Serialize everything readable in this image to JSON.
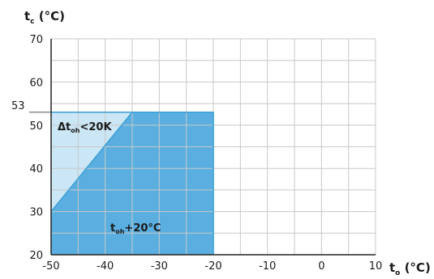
{
  "chart_data": {
    "type": "area",
    "x_axis": {
      "label_main": "t",
      "label_sub": "o",
      "label_unit": " (°C)",
      "range": [
        -50,
        10
      ],
      "ticks": [
        -50,
        -40,
        -30,
        -20,
        -10,
        0,
        10
      ],
      "tick_labels": [
        "-50",
        "-40",
        "-30",
        "-20",
        "-10",
        "0",
        "10"
      ],
      "grid_step": 5
    },
    "y_axis": {
      "label_main": "t",
      "label_sub": "c",
      "label_unit": " (°C)",
      "range": [
        20,
        70
      ],
      "ticks": [
        20,
        30,
        40,
        50,
        60,
        70
      ],
      "tick_labels": [
        "20",
        "30",
        "40",
        "50",
        "60",
        "70"
      ],
      "grid_step": 5,
      "extra_tick": 53,
      "extra_tick_label": "53"
    },
    "grid": true,
    "regions": [
      {
        "name": "toh+20°C",
        "label_main": "t",
        "label_sub": "oh",
        "label_rest": "+20°C",
        "color": "#5aafe0",
        "points": [
          [
            -50,
            20
          ],
          [
            -50,
            30
          ],
          [
            -35,
            53
          ],
          [
            -20,
            53
          ],
          [
            -20,
            20
          ]
        ]
      },
      {
        "name": "Δtoh<20K",
        "label_main": "Δt",
        "label_sub": "oh",
        "label_rest": "<20K",
        "color": "#cbe6f5",
        "points": [
          [
            -50,
            30
          ],
          [
            -50,
            53
          ],
          [
            -35,
            53
          ]
        ]
      }
    ]
  }
}
